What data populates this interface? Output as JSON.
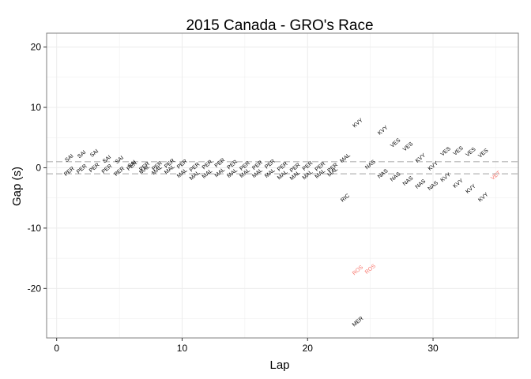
{
  "chart_data": {
    "type": "scatter",
    "title": "2015 Canada - GRO's Race",
    "xlabel": "Lap",
    "ylabel": "Gap (s)",
    "xlim": [
      -0.8,
      36.8
    ],
    "ylim": [
      -28.2,
      22.3
    ],
    "x_ticks": [
      0,
      10,
      20,
      30
    ],
    "y_ticks": [
      -20,
      -10,
      0,
      10,
      20
    ],
    "grid": true,
    "background": "#ffffff",
    "reference_lines": [
      1,
      -1
    ],
    "colors": {
      "default": "#000000",
      "highlight": "#F8766D",
      "grid": "#ececec",
      "refline": "#b3b3b3"
    },
    "points": [
      {
        "x": 1,
        "y": 1.6,
        "label": "SAI"
      },
      {
        "x": 1,
        "y": -0.6,
        "label": "PER"
      },
      {
        "x": 2,
        "y": 2.2,
        "label": "SAI"
      },
      {
        "x": 2,
        "y": -0.2,
        "label": "PER"
      },
      {
        "x": 3,
        "y": 2.4,
        "label": "SAI"
      },
      {
        "x": 3,
        "y": 0.0,
        "label": "PER"
      },
      {
        "x": 4,
        "y": 1.4,
        "label": "SAI"
      },
      {
        "x": 4,
        "y": -0.2,
        "label": "PER"
      },
      {
        "x": 5,
        "y": 1.3,
        "label": "SAI"
      },
      {
        "x": 5,
        "y": -0.6,
        "label": "PER"
      },
      {
        "x": 6,
        "y": 0.6,
        "label": "SAI"
      },
      {
        "x": 6,
        "y": 0.3,
        "label": "PER"
      },
      {
        "x": 7,
        "y": 0.2,
        "label": "PER"
      },
      {
        "x": 7,
        "y": -0.3,
        "label": "MAL"
      },
      {
        "x": 8,
        "y": 0.3,
        "label": "PER"
      },
      {
        "x": 8,
        "y": -0.4,
        "label": "MAL"
      },
      {
        "x": 9,
        "y": 0.7,
        "label": "PER"
      },
      {
        "x": 9,
        "y": -0.3,
        "label": "MAL"
      },
      {
        "x": 10,
        "y": 0.6,
        "label": "PER"
      },
      {
        "x": 10,
        "y": -0.9,
        "label": "MAL"
      },
      {
        "x": 11,
        "y": 0.1,
        "label": "PER"
      },
      {
        "x": 11,
        "y": -1.3,
        "label": "MAL"
      },
      {
        "x": 12,
        "y": 0.5,
        "label": "PER"
      },
      {
        "x": 12,
        "y": -1.0,
        "label": "MAL"
      },
      {
        "x": 13,
        "y": 0.8,
        "label": "PER"
      },
      {
        "x": 13,
        "y": -0.8,
        "label": "MAL"
      },
      {
        "x": 14,
        "y": 0.5,
        "label": "PER"
      },
      {
        "x": 14,
        "y": -0.9,
        "label": "MAL"
      },
      {
        "x": 15,
        "y": 0.3,
        "label": "PER"
      },
      {
        "x": 15,
        "y": -0.9,
        "label": "MAL"
      },
      {
        "x": 16,
        "y": 0.4,
        "label": "PER"
      },
      {
        "x": 16,
        "y": -0.9,
        "label": "MAL"
      },
      {
        "x": 17,
        "y": 0.6,
        "label": "PER"
      },
      {
        "x": 17,
        "y": -0.9,
        "label": "MAL"
      },
      {
        "x": 18,
        "y": 0.2,
        "label": "PER"
      },
      {
        "x": 18,
        "y": -1.2,
        "label": "MAL"
      },
      {
        "x": 19,
        "y": 0.0,
        "label": "PER"
      },
      {
        "x": 19,
        "y": -1.3,
        "label": "MAL"
      },
      {
        "x": 20,
        "y": 0.3,
        "label": "PER"
      },
      {
        "x": 20,
        "y": -1.2,
        "label": "MAL"
      },
      {
        "x": 21,
        "y": 0.2,
        "label": "PER"
      },
      {
        "x": 21,
        "y": -1.0,
        "label": "MAL"
      },
      {
        "x": 22,
        "y": 0.0,
        "label": "PER"
      },
      {
        "x": 22,
        "y": -0.7,
        "label": "MAL"
      },
      {
        "x": 23,
        "y": 1.6,
        "label": "MAL"
      },
      {
        "x": 23,
        "y": -5.0,
        "label": "RIC"
      },
      {
        "x": 24,
        "y": 7.4,
        "label": "KVY"
      },
      {
        "x": 24,
        "y": -17.0,
        "label": "ROS",
        "highlight": true
      },
      {
        "x": 24,
        "y": -25.5,
        "label": "MER"
      },
      {
        "x": 25,
        "y": 0.5,
        "label": "NAS"
      },
      {
        "x": 25,
        "y": -16.8,
        "label": "ROS",
        "highlight": true
      },
      {
        "x": 26,
        "y": 6.2,
        "label": "KVY"
      },
      {
        "x": 26,
        "y": -1.0,
        "label": "NAS"
      },
      {
        "x": 27,
        "y": 4.1,
        "label": "VES"
      },
      {
        "x": 27,
        "y": -1.5,
        "label": "NAS"
      },
      {
        "x": 28,
        "y": 3.5,
        "label": "VES"
      },
      {
        "x": 28,
        "y": -2.2,
        "label": "NAS"
      },
      {
        "x": 29,
        "y": 1.6,
        "label": "KVY"
      },
      {
        "x": 29,
        "y": -2.7,
        "label": "NAS"
      },
      {
        "x": 30,
        "y": 0.3,
        "label": "KVY"
      },
      {
        "x": 30,
        "y": -3.0,
        "label": "NAS"
      },
      {
        "x": 31,
        "y": 2.7,
        "label": "VES"
      },
      {
        "x": 31,
        "y": -1.6,
        "label": "KVY"
      },
      {
        "x": 32,
        "y": 2.8,
        "label": "VES"
      },
      {
        "x": 32,
        "y": -2.6,
        "label": "KVY"
      },
      {
        "x": 33,
        "y": 2.6,
        "label": "VES"
      },
      {
        "x": 33,
        "y": -3.5,
        "label": "KVY"
      },
      {
        "x": 34,
        "y": 2.4,
        "label": "VES"
      },
      {
        "x": 34,
        "y": -4.9,
        "label": "KVY"
      },
      {
        "x": 35,
        "y": -1.3,
        "label": "VET",
        "highlight": true
      }
    ]
  }
}
